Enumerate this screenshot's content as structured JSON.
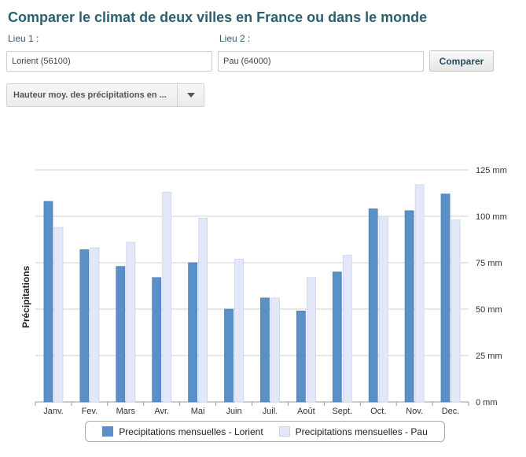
{
  "page": {
    "title": "Comparer le climat de deux villes en France ou dans le monde"
  },
  "form": {
    "lieu1_label": "Lieu 1 :",
    "lieu1_value": "Lorient (56100)",
    "lieu2_label": "Lieu 2 :",
    "lieu2_value": "Pau (64000)",
    "compare_label": "Comparer",
    "metric_select": "Hauteur moy. des précipitations en ..."
  },
  "colors": {
    "lorient": "#5b8fc7",
    "pau": "#e2e8f8",
    "grid": "#cfcfcf",
    "axis": "#999999"
  },
  "chart_data": {
    "type": "bar",
    "ylabel": "Précipitations",
    "ylim": [
      0,
      125
    ],
    "yticks": [
      0,
      25,
      50,
      75,
      100,
      125
    ],
    "ytick_labels": [
      "0 mm",
      "25 mm",
      "50 mm",
      "75 mm",
      "100 mm",
      "125 mm"
    ],
    "categories": [
      "Janv.",
      "Fev.",
      "Mars",
      "Avr.",
      "Mai",
      "Juin",
      "Juil.",
      "Août",
      "Sept.",
      "Oct.",
      "Nov.",
      "Dec."
    ],
    "series": [
      {
        "name": "Precipitations mensuelles - Lorient",
        "values": [
          108,
          82,
          73,
          67,
          75,
          50,
          56,
          49,
          70,
          104,
          103,
          112
        ]
      },
      {
        "name": "Precipitations mensuelles - Pau",
        "values": [
          94,
          83,
          86,
          113,
          99,
          77,
          56,
          67,
          79,
          100,
          117,
          98
        ]
      }
    ],
    "grid": true,
    "legend": "bottom-center"
  }
}
